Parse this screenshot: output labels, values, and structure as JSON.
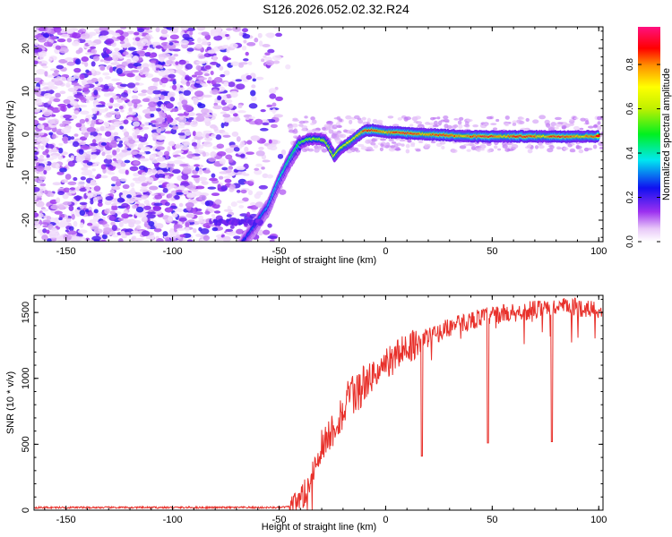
{
  "title": "S126.2026.052.02.32.R24",
  "chart_data": [
    {
      "type": "heatmap",
      "description_of_signal": [
        [
          -60,
          -20.5
        ],
        [
          -55,
          -17
        ],
        [
          -50,
          -11
        ],
        [
          -45,
          -6
        ],
        [
          -40,
          -2
        ],
        [
          -36,
          -1.2
        ],
        [
          -32,
          -1
        ],
        [
          -28,
          -1.5
        ],
        [
          -24,
          -5
        ],
        [
          -20,
          -3
        ],
        [
          -15,
          -1.2
        ],
        [
          -10,
          0.8
        ],
        [
          -5,
          1
        ],
        [
          0,
          0.5
        ],
        [
          20,
          0
        ],
        [
          40,
          -0.5
        ],
        [
          60,
          -0.5
        ],
        [
          80,
          -0.5
        ],
        [
          100,
          -0.5
        ]
      ],
      "xlabel": "Height of straight line (km)",
      "ylabel": "Frequency (Hz)",
      "xlim": [
        -165,
        102
      ],
      "ylim": [
        -25,
        25
      ],
      "xticks": [
        "-150",
        "-100",
        "-50",
        "0",
        "50",
        "100"
      ],
      "yticks": [
        "-20",
        "-10",
        "0",
        "10",
        "20"
      ],
      "colorbar": {
        "label": "Normalized spectral amplitude",
        "range": [
          0,
          0.97
        ],
        "ticks": [
          "0.0",
          "0.2",
          "0.4",
          "0.6",
          "0.8"
        ]
      }
    },
    {
      "type": "line",
      "series_color": "#e8302a",
      "profile": [
        [
          -165,
          20
        ],
        [
          -50,
          20
        ],
        [
          -42,
          30
        ],
        [
          -38,
          120
        ],
        [
          -34,
          300
        ],
        [
          -30,
          500
        ],
        [
          -26,
          580
        ],
        [
          -22,
          700
        ],
        [
          -18,
          820
        ],
        [
          -14,
          880
        ],
        [
          -10,
          950
        ],
        [
          -6,
          1020
        ],
        [
          -2,
          1080
        ],
        [
          2,
          1140
        ],
        [
          6,
          1190
        ],
        [
          10,
          1230
        ],
        [
          14,
          1270
        ],
        [
          18,
          1300
        ],
        [
          24,
          1340
        ],
        [
          30,
          1390
        ],
        [
          36,
          1420
        ],
        [
          42,
          1450
        ],
        [
          50,
          1480
        ],
        [
          60,
          1500
        ],
        [
          70,
          1520
        ],
        [
          80,
          1540
        ],
        [
          90,
          1540
        ],
        [
          100,
          1520
        ]
      ],
      "dips": [
        {
          "x": 17,
          "y": 410
        },
        {
          "x": 48,
          "y": 510
        },
        {
          "x": 78,
          "y": 520
        }
      ],
      "xlabel": "Height of straight line (km)",
      "ylabel": "SNR (10 * v/v)",
      "xlim": [
        -165,
        102
      ],
      "ylim": [
        0,
        1630
      ],
      "xticks": [
        "-150",
        "-100",
        "-50",
        "0",
        "50",
        "100"
      ],
      "yticks": [
        "0",
        "500",
        "1000",
        "1500"
      ]
    }
  ]
}
